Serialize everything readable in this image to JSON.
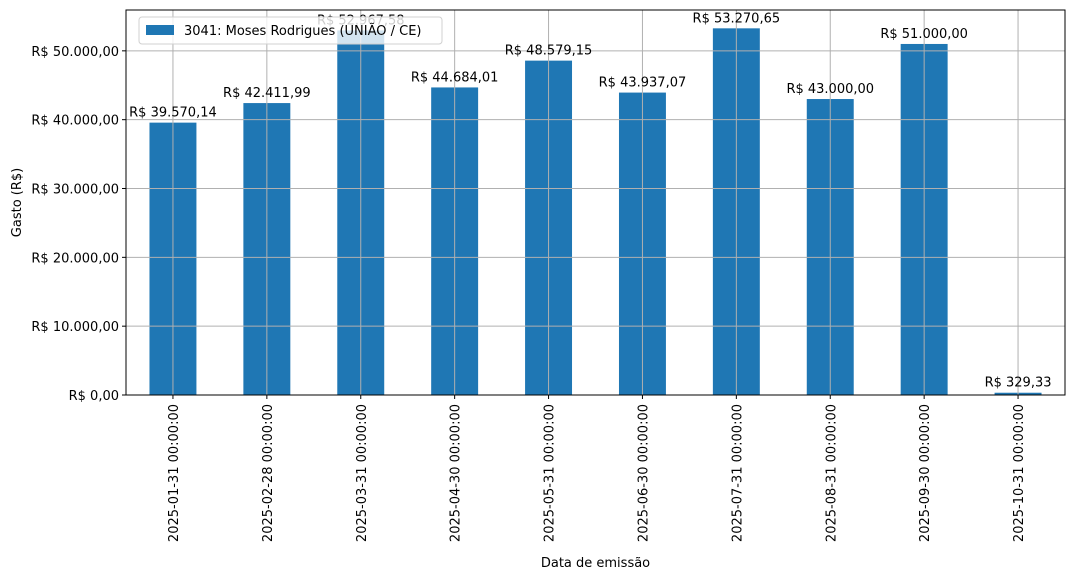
{
  "chart_data": {
    "type": "bar",
    "title": "",
    "xlabel": "Data de emissão",
    "ylabel": "Gasto (R$)",
    "categories": [
      "2025-01-31 00:00:00",
      "2025-02-28 00:00:00",
      "2025-03-31 00:00:00",
      "2025-04-30 00:00:00",
      "2025-05-31 00:00:00",
      "2025-06-30 00:00:00",
      "2025-07-31 00:00:00",
      "2025-08-31 00:00:00",
      "2025-09-30 00:00:00",
      "2025-10-31 00:00:00"
    ],
    "series": [
      {
        "name": "3041: Moses Rodrigues (UNIÃO / CE)",
        "values": [
          39570.14,
          42411.99,
          52967.58,
          44684.01,
          48579.15,
          43937.07,
          53270.65,
          43000.0,
          51000.0,
          329.33
        ],
        "labels": [
          "R$ 39.570,14",
          "R$ 42.411,99",
          "R$ 52.967,58",
          "R$ 44.684,01",
          "R$ 48.579,15",
          "R$ 43.937,07",
          "R$ 53.270,65",
          "R$ 43.000,00",
          "R$ 51.000,00",
          "R$ 329,33"
        ],
        "color": "#1f77b4"
      }
    ],
    "yticks": [
      0,
      10000,
      20000,
      30000,
      40000,
      50000
    ],
    "ytick_labels": [
      "R$ 0,00",
      "R$ 10.000,00",
      "R$ 20.000,00",
      "R$ 30.000,00",
      "R$ 40.000,00",
      "R$ 50.000,00"
    ],
    "ylim": [
      0,
      55934
    ],
    "grid": true,
    "legend": "upper-left"
  }
}
